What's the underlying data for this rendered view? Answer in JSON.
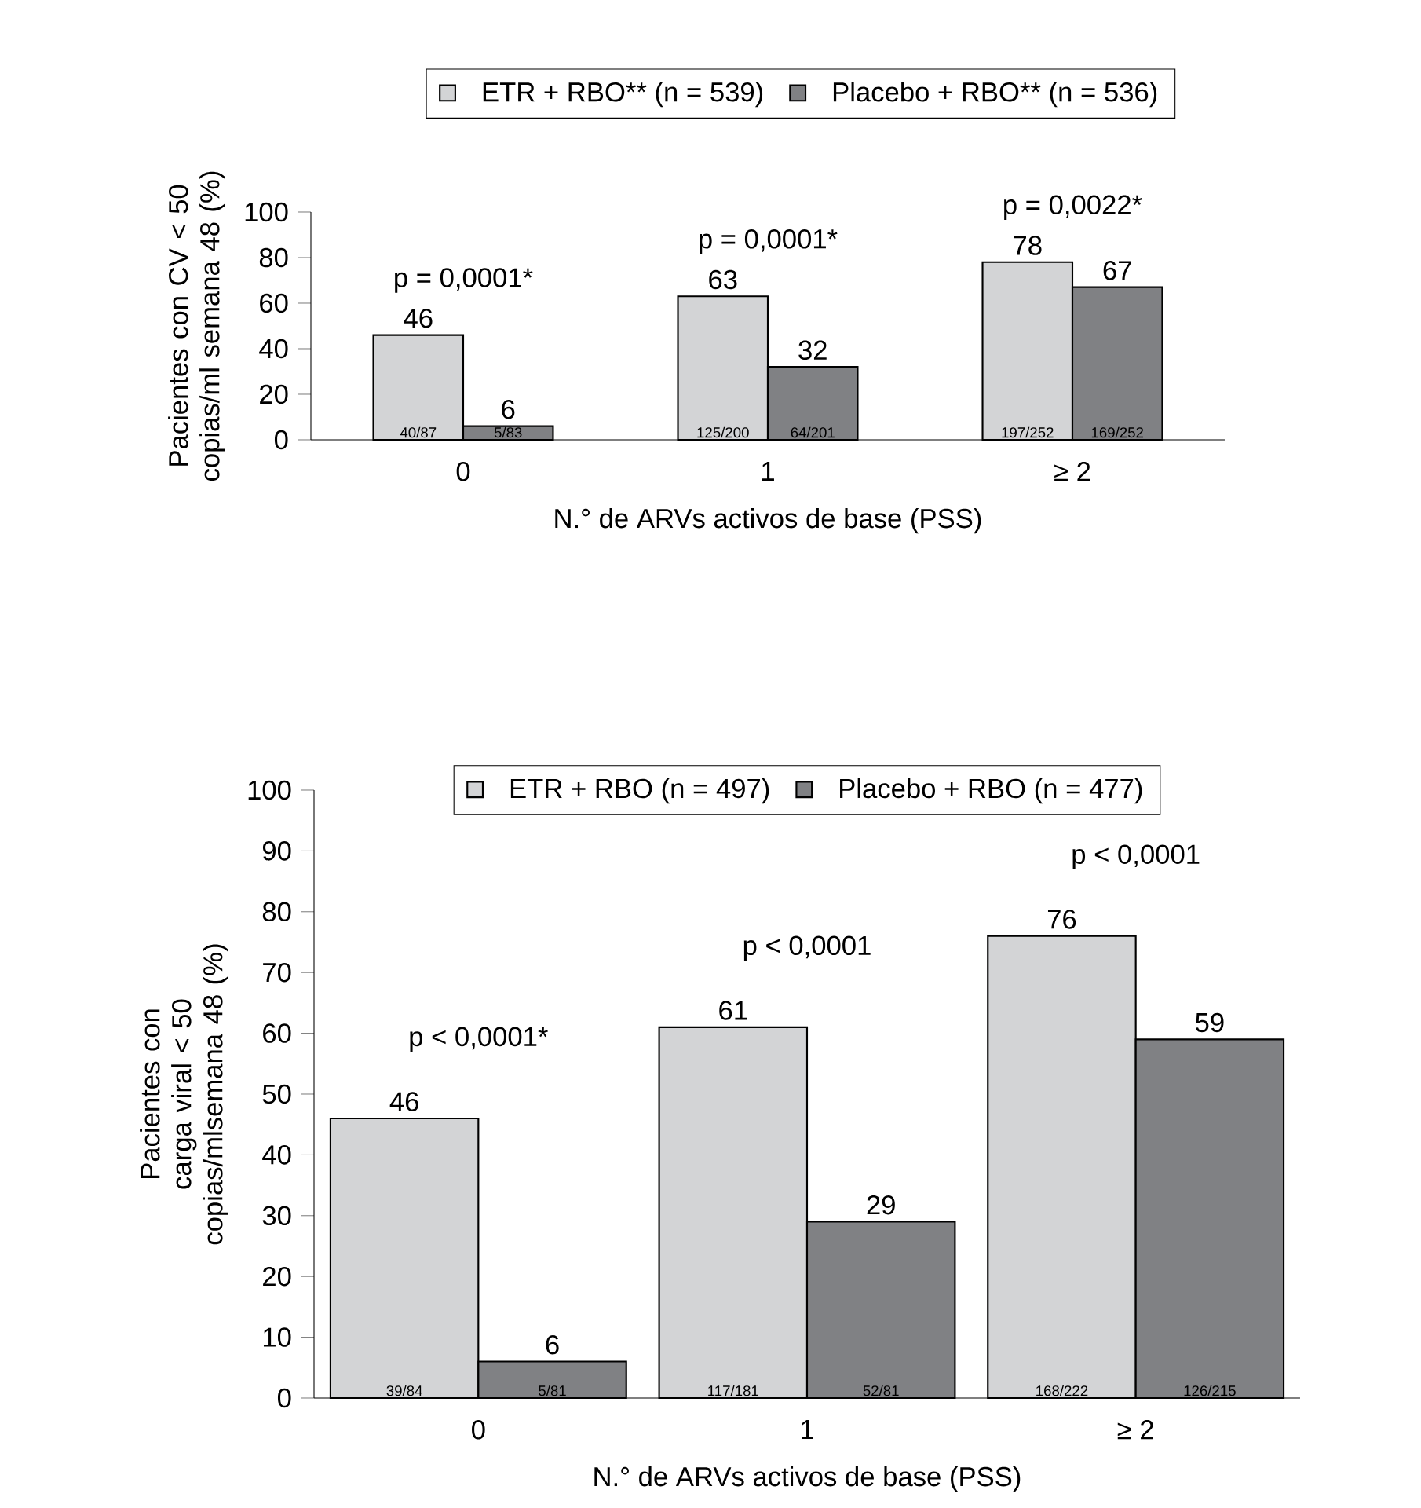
{
  "chart_data": [
    {
      "type": "bar",
      "categories": [
        "0",
        "1",
        "≥ 2"
      ],
      "xlabel": "N.° de ARVs activos de base (PSS)",
      "ylabel": "Pacientes con CV < 50 copias/ml semana 48 (%)",
      "ylim": [
        0,
        100
      ],
      "yticks": [
        0,
        20,
        40,
        60,
        80,
        100
      ],
      "legend": "top",
      "series": [
        {
          "name": "ETR + RBO** (n = 539)",
          "color": "#d3d4d6",
          "values": [
            46,
            63,
            78
          ],
          "value_labels": [
            "46",
            "63",
            "78"
          ]
        },
        {
          "name": "Placebo + RBO** (n = 536)",
          "color": "#808184",
          "values": [
            6,
            32,
            67
          ],
          "value_labels": [
            "6",
            "32",
            "67"
          ]
        }
      ],
      "annotations": [
        "p = 0,0001*",
        "p = 0,0001*",
        "p = 0,0022*",
        "40/87",
        "125/200",
        "197/252",
        "5/83",
        "64/201",
        "169/252"
      ]
    },
    {
      "type": "bar",
      "categories": [
        "0",
        "1",
        "≥ 2"
      ],
      "xlabel": "N.° de ARVs activos de base (PSS)",
      "ylabel": "Pacientes con carga viral < 50 copias/mlsemana 48 (%)",
      "ylim": [
        0,
        100
      ],
      "yticks": [
        0,
        10,
        20,
        30,
        40,
        50,
        60,
        70,
        80,
        90,
        100
      ],
      "legend": "top",
      "series": [
        {
          "name": "ETR + RBO (n = 497)",
          "color": "#d3d4d6",
          "values": [
            46,
            61,
            76
          ],
          "value_labels": [
            "46",
            "61",
            "76"
          ]
        },
        {
          "name": "Placebo + RBO (n = 477)",
          "color": "#808184",
          "values": [
            6,
            29,
            59
          ],
          "value_labels": [
            "6",
            "29",
            "59"
          ]
        }
      ],
      "annotations": [
        "p < 0,0001*",
        "p < 0,0001",
        "p < 0,0001",
        "39/84",
        "117/181",
        "168/222",
        "5/81",
        "52/81",
        "126/215"
      ]
    }
  ]
}
